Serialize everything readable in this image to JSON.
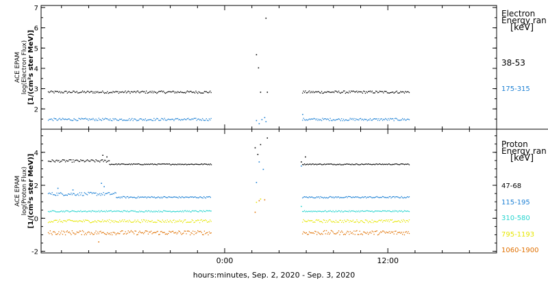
{
  "chart_data": [
    {
      "type": "scatter",
      "panel": "electron",
      "ylabel": [
        "ACE EPAM",
        "log(Electron Flux)",
        "[1/(cm²s ster MeV)]"
      ],
      "ylim": [
        1.0,
        7.1
      ],
      "yticks": [
        "7",
        "6",
        "5",
        "4",
        "3",
        "2"
      ],
      "legend_title": [
        "Electron",
        "Energy ran",
        "[keV]"
      ],
      "series": [
        {
          "name": "38-53",
          "color": "#000000",
          "segments": [
            {
              "x_hours": [
                -13.0,
                -1.0
              ],
              "level": 2.85,
              "noise": 0.06
            },
            {
              "x_hours": [
                5.7,
                13.6
              ],
              "level": 2.85,
              "noise": 0.06
            }
          ],
          "points": [
            [
              2.3,
              4.7
            ],
            [
              2.45,
              4.05
            ],
            [
              2.6,
              2.85
            ],
            [
              3.0,
              6.5
            ],
            [
              3.1,
              2.85
            ]
          ]
        },
        {
          "name": "175-315",
          "color": "#1a7fd4",
          "segments": [
            {
              "x_hours": [
                -13.0,
                -1.0
              ],
              "level": 1.5,
              "noise": 0.06
            },
            {
              "x_hours": [
                5.7,
                13.6
              ],
              "level": 1.5,
              "noise": 0.06
            }
          ],
          "points": [
            [
              2.3,
              1.45
            ],
            [
              2.5,
              1.3
            ],
            [
              2.7,
              1.5
            ],
            [
              2.9,
              1.6
            ],
            [
              3.0,
              1.4
            ],
            [
              5.7,
              1.75
            ]
          ]
        }
      ]
    },
    {
      "type": "scatter",
      "panel": "proton",
      "ylabel": [
        "ACE EPAM",
        "log(Proton Flux)",
        "[1/(cm²s ster MeV)]"
      ],
      "ylim": [
        -2.1,
        5.4
      ],
      "yticks": [
        "4",
        "2",
        "0",
        "-2"
      ],
      "legend_title": [
        "Proton",
        "Energy ran",
        "[keV]"
      ],
      "series": [
        {
          "name": "47-68",
          "color": "#000000",
          "segments": [
            {
              "x_hours": [
                -13.0,
                -8.5
              ],
              "level": 3.5,
              "noise": 0.08
            },
            {
              "x_hours": [
                -8.5,
                -1.0
              ],
              "level": 3.3,
              "noise": 0.03
            },
            {
              "x_hours": [
                5.7,
                13.6
              ],
              "level": 3.3,
              "noise": 0.03
            }
          ],
          "points": [
            [
              -9.0,
              3.85
            ],
            [
              -8.7,
              3.75
            ],
            [
              2.2,
              4.3
            ],
            [
              2.4,
              3.9
            ],
            [
              2.6,
              4.5
            ],
            [
              3.1,
              4.9
            ],
            [
              5.6,
              3.45
            ],
            [
              5.9,
              3.75
            ]
          ]
        },
        {
          "name": "115-195",
          "color": "#1a7fd4",
          "segments": [
            {
              "x_hours": [
                -13.0,
                -8.0
              ],
              "level": 1.5,
              "noise": 0.1
            },
            {
              "x_hours": [
                -8.0,
                -1.0
              ],
              "level": 1.3,
              "noise": 0.05
            },
            {
              "x_hours": [
                5.7,
                13.6
              ],
              "level": 1.3,
              "noise": 0.05
            }
          ],
          "points": [
            [
              -12.3,
              1.85
            ],
            [
              -11.2,
              1.75
            ],
            [
              -9.1,
              2.15
            ],
            [
              -8.9,
              1.95
            ],
            [
              2.3,
              2.2
            ],
            [
              2.5,
              3.45
            ],
            [
              2.8,
              3.0
            ],
            [
              5.6,
              3.2
            ]
          ]
        },
        {
          "name": "310-580",
          "color": "#26d4cf",
          "segments": [
            {
              "x_hours": [
                -13.0,
                -1.0
              ],
              "level": 0.45,
              "noise": 0.04
            },
            {
              "x_hours": [
                5.7,
                13.6
              ],
              "level": 0.45,
              "noise": 0.04
            }
          ],
          "points": [
            [
              5.6,
              0.75
            ]
          ]
        },
        {
          "name": "795-1193",
          "color": "#e6e600",
          "segments": [
            {
              "x_hours": [
                -13.0,
                -1.0
              ],
              "level": -0.15,
              "noise": 0.09
            },
            {
              "x_hours": [
                5.7,
                13.6
              ],
              "level": -0.15,
              "noise": 0.09
            }
          ],
          "points": [
            [
              2.3,
              1.0
            ],
            [
              2.6,
              1.2
            ]
          ]
        },
        {
          "name": "1060-1900",
          "color": "#e07000",
          "segments": [
            {
              "x_hours": [
                -13.0,
                -1.0
              ],
              "level": -0.85,
              "noise": 0.13
            },
            {
              "x_hours": [
                5.7,
                13.6
              ],
              "level": -0.85,
              "noise": 0.13
            }
          ],
          "points": [
            [
              -9.3,
              -1.4
            ],
            [
              2.2,
              0.4
            ],
            [
              2.5,
              1.1
            ],
            [
              2.9,
              1.15
            ]
          ]
        }
      ]
    }
  ],
  "x_axis": {
    "label": "hours:minutes, Sep.  2, 2020 - Sep.  3, 2020",
    "range_hours": [
      -13.5,
      20.0
    ],
    "major_ticks": [
      {
        "hour": 0,
        "label": "0:00"
      },
      {
        "hour": 12,
        "label": "12:00"
      }
    ],
    "minor_tick_every_hours": 2
  },
  "colors": {
    "axes": "#000000",
    "background": "#ffffff"
  }
}
